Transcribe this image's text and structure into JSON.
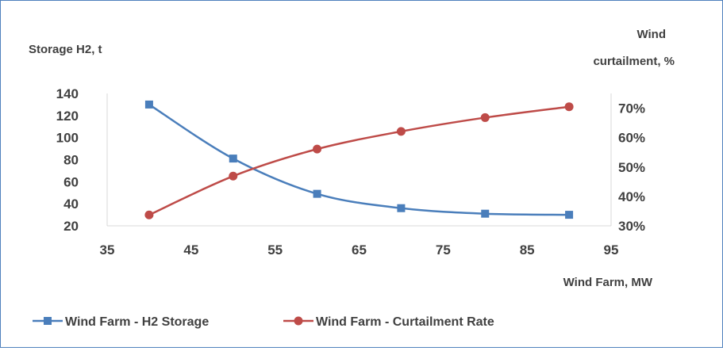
{
  "chart_data": {
    "type": "line",
    "y_axis_left": {
      "label": "Storage H2, t",
      "min": 20,
      "max": 140,
      "ticks": [
        20,
        40,
        60,
        80,
        100,
        120,
        140
      ]
    },
    "y_axis_right": {
      "label_lines": [
        "Wind",
        "curtailment, %"
      ],
      "min": 0.3,
      "max": 0.75,
      "ticks": [
        0.3,
        0.4,
        0.5,
        0.6,
        0.7
      ],
      "tick_labels": [
        "30%",
        "40%",
        "50%",
        "60%",
        "70%"
      ]
    },
    "x_axis": {
      "label": "Wind Farm, MW",
      "min": 35,
      "max": 95,
      "ticks": [
        35,
        45,
        55,
        65,
        75,
        85,
        95
      ]
    },
    "x": [
      40,
      50,
      60,
      70,
      80,
      90
    ],
    "series": [
      {
        "name": "Wind Farm - H2 Storage",
        "axis": "left",
        "marker": "square",
        "color": "#4a7ebb",
        "values": [
          130,
          81,
          49,
          36,
          31,
          30
        ]
      },
      {
        "name": "Wind Farm - Curtailment Rate",
        "axis": "right",
        "marker": "circle",
        "color": "#be4b48",
        "values": [
          0.337,
          0.469,
          0.561,
          0.621,
          0.668,
          0.705
        ]
      }
    ],
    "grid": false,
    "legend_position": "bottom-left"
  }
}
